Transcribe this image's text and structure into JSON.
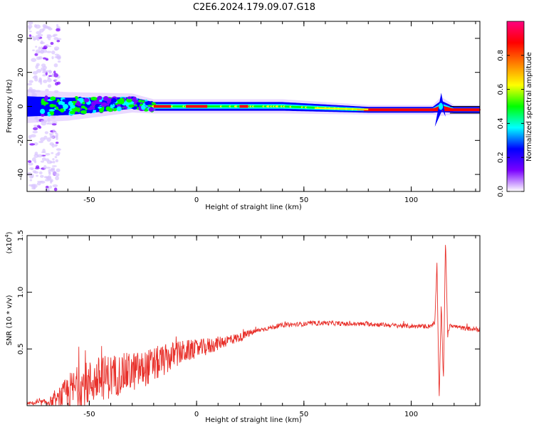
{
  "title": "C2E6.2024.179.09.07.G18",
  "chart_data": [
    {
      "type": "heatmap",
      "name": "spectrogram",
      "xlabel": "Height of straight line (km)",
      "ylabel": "Frequency (Hz)",
      "xlim": [
        -79,
        132
      ],
      "ylim": [
        -50,
        50
      ],
      "xticks": [
        -50,
        0,
        50,
        100
      ],
      "yticks": [
        -40,
        -20,
        0,
        20,
        40
      ],
      "ridge": {
        "x": [
          -79,
          -60,
          -45,
          -30,
          -20,
          0,
          20,
          40,
          60,
          80,
          100,
          110,
          114,
          120,
          132
        ],
        "center_hz": [
          0,
          0,
          1,
          2,
          0,
          0,
          0,
          0,
          -1,
          -2,
          -2,
          -2,
          0,
          -2,
          -2
        ],
        "halfwidth_hz": [
          7,
          6,
          5,
          4,
          3,
          3,
          3,
          3,
          2.5,
          2,
          2,
          2,
          4,
          2,
          2
        ]
      },
      "colorbar": {
        "label": "Normalized spectral amplitude",
        "ticks": [
          0.0,
          0.2,
          0.4,
          0.6,
          0.8
        ],
        "range": [
          0,
          1
        ],
        "colors": [
          "#ffffff",
          "#7a00ff",
          "#0000ff",
          "#00ffff",
          "#00ff00",
          "#ffff00",
          "#ff8000",
          "#ff0000",
          "#ff0080"
        ]
      }
    },
    {
      "type": "line",
      "name": "snr",
      "xlabel": "Height of straight line (km)",
      "ylabel": "SNR (10 * v/v)",
      "yscale_label": "(x10",
      "yscale_exp": "4",
      "yscale_close": ")",
      "xlim": [
        -79,
        132
      ],
      "ylim": [
        0,
        1.5
      ],
      "xticks": [
        -50,
        0,
        50,
        100
      ],
      "yticks": [
        0.5,
        1.0,
        1.5
      ],
      "ytick_labels": [
        "0.5",
        "1.0",
        "1.5"
      ],
      "color": "#e8302a",
      "x": [
        -79,
        -70,
        -65,
        -60,
        -55,
        -50,
        -45,
        -40,
        -35,
        -30,
        -25,
        -20,
        -15,
        -10,
        -5,
        0,
        5,
        10,
        15,
        20,
        25,
        30,
        35,
        40,
        50,
        60,
        70,
        80,
        90,
        100,
        108,
        111,
        112,
        113,
        114,
        115,
        116,
        117,
        118,
        120,
        125,
        132
      ],
      "y": [
        0.02,
        0.03,
        0.05,
        0.12,
        0.16,
        0.2,
        0.24,
        0.26,
        0.28,
        0.3,
        0.32,
        0.36,
        0.4,
        0.45,
        0.48,
        0.5,
        0.52,
        0.55,
        0.58,
        0.6,
        0.64,
        0.67,
        0.69,
        0.71,
        0.72,
        0.73,
        0.72,
        0.72,
        0.71,
        0.7,
        0.7,
        0.72,
        1.25,
        0.05,
        0.9,
        0.2,
        1.48,
        0.6,
        0.72,
        0.7,
        0.68,
        0.67
      ],
      "noise": [
        0.01,
        0.03,
        0.06,
        0.16,
        0.2,
        0.2,
        0.2,
        0.2,
        0.18,
        0.18,
        0.16,
        0.16,
        0.14,
        0.12,
        0.1,
        0.08,
        0.08,
        0.06,
        0.05,
        0.04,
        0.03,
        0.02,
        0.02,
        0.02,
        0.02,
        0.02,
        0.02,
        0.02,
        0.02,
        0.02,
        0.02,
        0.02,
        0.02,
        0.02,
        0.02,
        0.02,
        0.02,
        0.02,
        0.02,
        0.02,
        0.02,
        0.02
      ]
    }
  ]
}
